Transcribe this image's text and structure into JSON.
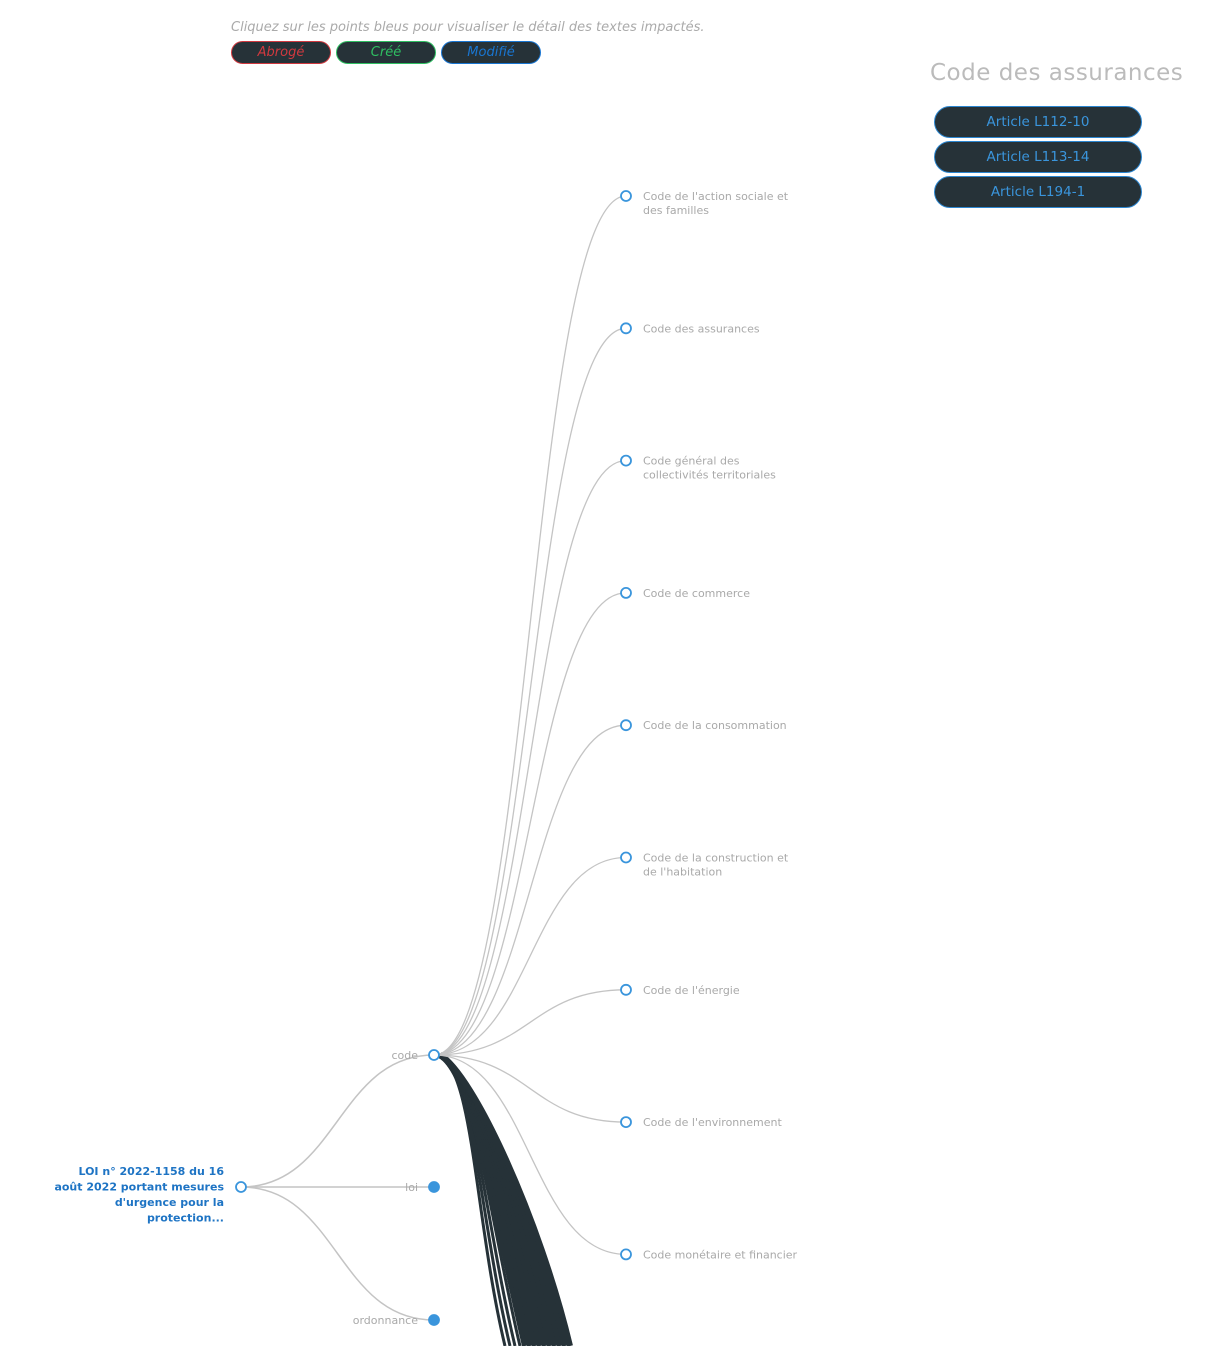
{
  "hint": "Cliquez sur les points bleus pour visualiser le détail des textes impactés.",
  "legend": [
    {
      "label": "Abrogé",
      "color": "#d0393f"
    },
    {
      "label": "Créé",
      "color": "#2fbf62"
    },
    {
      "label": "Modifié",
      "color": "#1976d2"
    }
  ],
  "panel": {
    "title": "Code des assurances",
    "articles": [
      "Article L112-10",
      "Article L113-14",
      "Article L194-1"
    ]
  },
  "tree": {
    "root": {
      "label_lines": [
        "LOI n° 2022-1158 du 16",
        "août 2022 portant mesures",
        "d'urgence pour la",
        "protection..."
      ]
    },
    "branches": [
      {
        "label": "code",
        "expanded": true
      },
      {
        "label": "loi",
        "expanded": false
      },
      {
        "label": "ordonnance",
        "expanded": false
      }
    ],
    "codes": [
      {
        "lines": [
          "Code de l'action sociale et",
          "des familles"
        ]
      },
      {
        "lines": [
          "Code des assurances"
        ]
      },
      {
        "lines": [
          "Code général des",
          "collectivités territoriales"
        ]
      },
      {
        "lines": [
          "Code de commerce"
        ]
      },
      {
        "lines": [
          "Code de la consommation"
        ]
      },
      {
        "lines": [
          "Code de la construction et",
          "de l'habitation"
        ]
      },
      {
        "lines": [
          "Code de l'énergie"
        ]
      },
      {
        "lines": [
          "Code de l'environnement"
        ]
      },
      {
        "lines": [
          "Code monétaire et financier"
        ]
      }
    ]
  },
  "colors": {
    "node": "#3a95dc",
    "link": "#c4c4c4",
    "dark_link": "#263238",
    "root_text": "#1e74c4"
  }
}
